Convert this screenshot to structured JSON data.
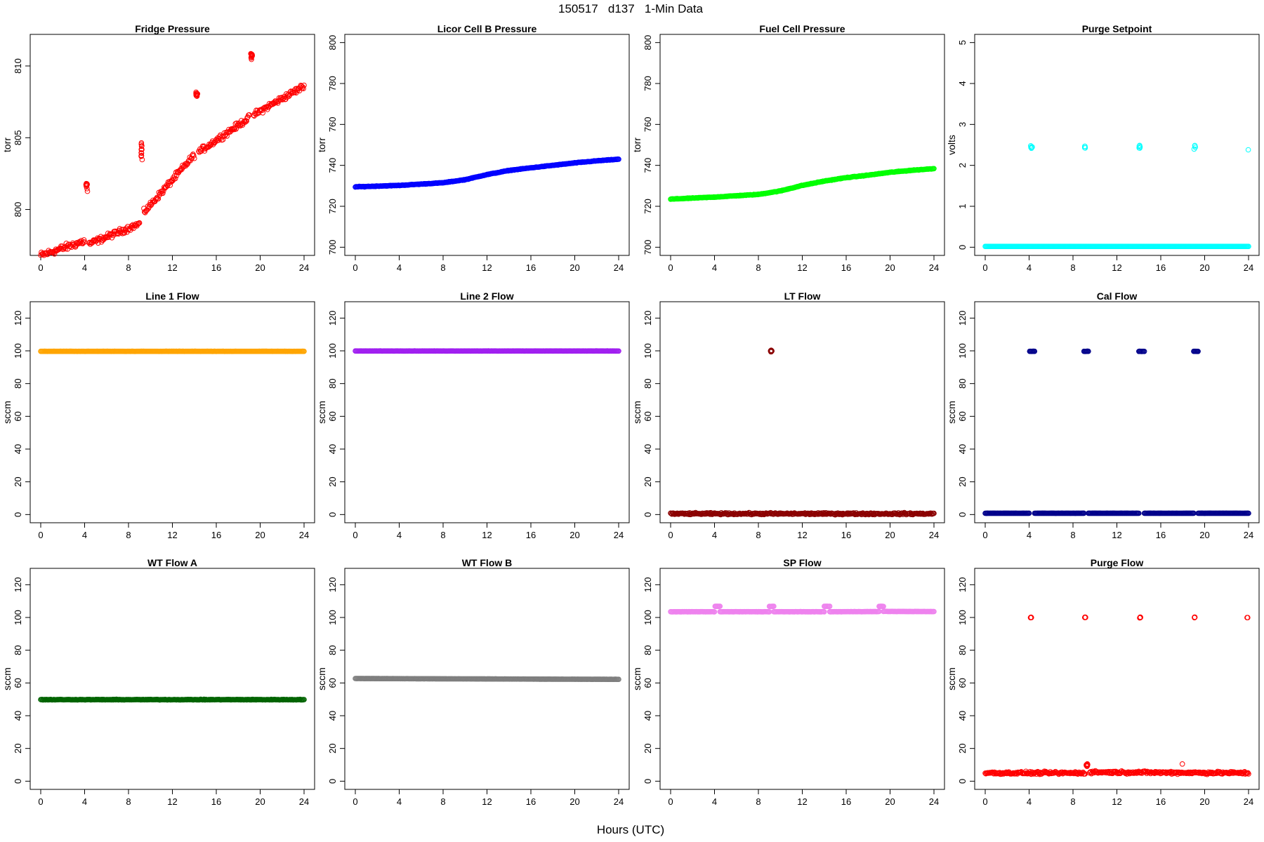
{
  "figure": {
    "title": "150517   d137   1-Min Data",
    "xlabel": "Hours (UTC)"
  },
  "chart_data": [
    {
      "type": "scatter",
      "title": "Fridge Pressure",
      "ylabel": "torr",
      "color": "#ff0000",
      "xlim": [
        -0.96,
        24.96
      ],
      "ylim": [
        796.8,
        812.2
      ],
      "xticks": [
        0,
        4,
        8,
        12,
        16,
        20,
        24
      ],
      "yticks": [
        800,
        805,
        810
      ],
      "segments": [
        {
          "x0": 0,
          "x1": 4,
          "y0": 796.8,
          "y1": 797.8,
          "noise": 0.35
        },
        {
          "x0": 4.4,
          "x1": 9.0,
          "y0": 797.6,
          "y1": 799.0,
          "noise": 0.3
        },
        {
          "x0": 9.4,
          "x1": 14.0,
          "y0": 799.8,
          "y1": 803.8,
          "noise": 0.3
        },
        {
          "x0": 14.4,
          "x1": 19.0,
          "y0": 804.0,
          "y1": 806.4,
          "noise": 0.3
        },
        {
          "x0": 19.4,
          "x1": 24.0,
          "y0": 806.6,
          "y1": 808.6,
          "noise": 0.3
        }
      ],
      "clusters": [
        {
          "x": 4.2,
          "y": 801.7,
          "n": 12,
          "spread": 0.5
        },
        {
          "x": 9.2,
          "y": 804.2,
          "n": 12,
          "spread": 0.9
        },
        {
          "x": 14.2,
          "y": 808.0,
          "n": 12,
          "spread": 0.3
        },
        {
          "x": 19.2,
          "y": 810.7,
          "n": 12,
          "spread": 0.4
        }
      ]
    },
    {
      "type": "scatter",
      "title": "Licor Cell B Pressure",
      "ylabel": "torr",
      "color": "#0000ff",
      "xlim": [
        -0.96,
        24.96
      ],
      "ylim": [
        696,
        804
      ],
      "xticks": [
        0,
        4,
        8,
        12,
        16,
        20,
        24
      ],
      "yticks": [
        700,
        720,
        740,
        760,
        780,
        800
      ],
      "series": [
        {
          "x": [
            0,
            4,
            8,
            10,
            12,
            14,
            16,
            18,
            20,
            22,
            24
          ],
          "y": [
            729.5,
            730.2,
            731.5,
            733.0,
            735.5,
            737.5,
            738.8,
            740.0,
            741.2,
            742.2,
            743.0
          ]
        }
      ],
      "noise": 0.2
    },
    {
      "type": "scatter",
      "title": "Fuel Cell Pressure",
      "ylabel": "torr",
      "color": "#00ff00",
      "xlim": [
        -0.96,
        24.96
      ],
      "ylim": [
        696,
        804
      ],
      "xticks": [
        0,
        4,
        8,
        12,
        16,
        20,
        24
      ],
      "yticks": [
        700,
        720,
        740,
        760,
        780,
        800
      ],
      "series": [
        {
          "x": [
            0,
            4,
            8,
            10,
            12,
            14,
            16,
            18,
            20,
            22,
            24
          ],
          "y": [
            723.5,
            724.5,
            725.8,
            727.5,
            730.2,
            732.3,
            734.0,
            735.2,
            736.6,
            737.6,
            738.4
          ]
        }
      ],
      "noise": 0.2
    },
    {
      "type": "scatter",
      "title": "Purge Setpoint",
      "ylabel": "volts",
      "color": "#00ffff",
      "xlim": [
        -0.96,
        24.96
      ],
      "ylim": [
        -0.2,
        5.2
      ],
      "xticks": [
        0,
        4,
        8,
        12,
        16,
        20,
        24
      ],
      "yticks": [
        0,
        1,
        2,
        3,
        4,
        5
      ],
      "segments": [
        {
          "x0": 0,
          "x1": 24,
          "y0": 0.02,
          "y1": 0.02,
          "noise": 0.0
        }
      ],
      "clusters": [
        {
          "x": 4.2,
          "y": 2.45,
          "n": 5,
          "spread": 0.07
        },
        {
          "x": 9.1,
          "y": 2.45,
          "n": 4,
          "spread": 0.06
        },
        {
          "x": 14.1,
          "y": 2.45,
          "n": 5,
          "spread": 0.07
        },
        {
          "x": 19.1,
          "y": 2.45,
          "n": 4,
          "spread": 0.06
        },
        {
          "x": 23.9,
          "y": 2.38,
          "n": 1,
          "spread": 0.0
        }
      ]
    },
    {
      "type": "scatter",
      "title": "Line 1 Flow",
      "ylabel": "sccm",
      "color": "#ffa500",
      "xlim": [
        -0.96,
        24.96
      ],
      "ylim": [
        -5,
        130
      ],
      "xticks": [
        0,
        4,
        8,
        12,
        16,
        20,
        24
      ],
      "yticks": [
        0,
        20,
        40,
        60,
        80,
        100,
        120
      ],
      "segments": [
        {
          "x0": 0,
          "x1": 24,
          "y0": 99.7,
          "y1": 99.7,
          "noise": 0.05
        }
      ]
    },
    {
      "type": "scatter",
      "title": "Line 2 Flow",
      "ylabel": "sccm",
      "color": "#a020f0",
      "xlim": [
        -0.96,
        24.96
      ],
      "ylim": [
        -5,
        130
      ],
      "xticks": [
        0,
        4,
        8,
        12,
        16,
        20,
        24
      ],
      "yticks": [
        0,
        20,
        40,
        60,
        80,
        100,
        120
      ],
      "segments": [
        {
          "x0": 0,
          "x1": 24,
          "y0": 99.9,
          "y1": 99.9,
          "noise": 0.05
        }
      ]
    },
    {
      "type": "scatter",
      "title": "LT Flow",
      "ylabel": "sccm",
      "color": "#8b0000",
      "xlim": [
        -0.96,
        24.96
      ],
      "ylim": [
        -5,
        130
      ],
      "xticks": [
        0,
        4,
        8,
        12,
        16,
        20,
        24
      ],
      "yticks": [
        0,
        20,
        40,
        60,
        80,
        100,
        120
      ],
      "segments": [
        {
          "x0": 0,
          "x1": 24,
          "y0": 0.5,
          "y1": 0.5,
          "noise": 0.8
        }
      ],
      "clusters": [
        {
          "x": 9.2,
          "y": 99.5,
          "n": 10,
          "spread": 1.5
        }
      ]
    },
    {
      "type": "scatter",
      "title": "Cal Flow",
      "ylabel": "sccm",
      "color": "#00008b",
      "xlim": [
        -0.96,
        24.96
      ],
      "ylim": [
        -5,
        130
      ],
      "xticks": [
        0,
        4,
        8,
        12,
        16,
        20,
        24
      ],
      "yticks": [
        0,
        20,
        40,
        60,
        80,
        100,
        120
      ],
      "segments": [
        {
          "x0": 0,
          "x1": 4,
          "y0": 0.8,
          "y1": 0.8,
          "noise": 0.05
        },
        {
          "x0": 4.5,
          "x1": 9.0,
          "y0": 0.8,
          "y1": 0.8,
          "noise": 0.05
        },
        {
          "x0": 9.4,
          "x1": 14.0,
          "y0": 0.8,
          "y1": 0.8,
          "noise": 0.05
        },
        {
          "x0": 14.5,
          "x1": 19.0,
          "y0": 0.8,
          "y1": 0.8,
          "noise": 0.05
        },
        {
          "x0": 19.4,
          "x1": 24.0,
          "y0": 0.8,
          "y1": 0.8,
          "noise": 0.05
        },
        {
          "x0": 4.05,
          "x1": 4.5,
          "y0": 99.7,
          "y1": 99.7,
          "noise": 0.1
        },
        {
          "x0": 9.0,
          "x1": 9.4,
          "y0": 99.7,
          "y1": 99.7,
          "noise": 0.1
        },
        {
          "x0": 14.0,
          "x1": 14.5,
          "y0": 99.7,
          "y1": 99.7,
          "noise": 0.1
        },
        {
          "x0": 19.0,
          "x1": 19.4,
          "y0": 99.7,
          "y1": 99.7,
          "noise": 0.1
        }
      ]
    },
    {
      "type": "scatter",
      "title": "WT Flow A",
      "ylabel": "sccm",
      "color": "#006400",
      "xlim": [
        -0.96,
        24.96
      ],
      "ylim": [
        -5,
        130
      ],
      "xticks": [
        0,
        4,
        8,
        12,
        16,
        20,
        24
      ],
      "yticks": [
        0,
        20,
        40,
        60,
        80,
        100,
        120
      ],
      "segments": [
        {
          "x0": 0,
          "x1": 24,
          "y0": 49.8,
          "y1": 49.8,
          "noise": 0.25
        }
      ]
    },
    {
      "type": "scatter",
      "title": "WT Flow B",
      "ylabel": "sccm",
      "color": "#7f7f7f",
      "xlim": [
        -0.96,
        24.96
      ],
      "ylim": [
        -5,
        130
      ],
      "xticks": [
        0,
        4,
        8,
        12,
        16,
        20,
        24
      ],
      "yticks": [
        0,
        20,
        40,
        60,
        80,
        100,
        120
      ],
      "segments": [
        {
          "x0": 0,
          "x1": 24,
          "y0": 62.7,
          "y1": 62.2,
          "noise": 0.05
        }
      ]
    },
    {
      "type": "scatter",
      "title": "SP Flow",
      "ylabel": "sccm",
      "color": "#ee82ee",
      "xlim": [
        -0.96,
        24.96
      ],
      "ylim": [
        -5,
        130
      ],
      "xticks": [
        0,
        4,
        8,
        12,
        16,
        20,
        24
      ],
      "yticks": [
        0,
        20,
        40,
        60,
        80,
        100,
        120
      ],
      "segments": [
        {
          "x0": 0,
          "x1": 4,
          "y0": 103.5,
          "y1": 103.5,
          "noise": 0.1
        },
        {
          "x0": 4.5,
          "x1": 9.0,
          "y0": 103.5,
          "y1": 103.5,
          "noise": 0.1
        },
        {
          "x0": 9.4,
          "x1": 14.0,
          "y0": 103.5,
          "y1": 103.5,
          "noise": 0.1
        },
        {
          "x0": 14.5,
          "x1": 19.0,
          "y0": 103.5,
          "y1": 103.6,
          "noise": 0.1
        },
        {
          "x0": 19.4,
          "x1": 24.0,
          "y0": 103.7,
          "y1": 103.6,
          "noise": 0.1
        },
        {
          "x0": 4.05,
          "x1": 4.5,
          "y0": 106.8,
          "y1": 106.8,
          "noise": 0.1
        },
        {
          "x0": 9.0,
          "x1": 9.4,
          "y0": 106.8,
          "y1": 106.8,
          "noise": 0.1
        },
        {
          "x0": 14.0,
          "x1": 14.5,
          "y0": 106.8,
          "y1": 106.8,
          "noise": 0.1
        },
        {
          "x0": 19.0,
          "x1": 19.4,
          "y0": 106.8,
          "y1": 106.8,
          "noise": 0.1
        }
      ]
    },
    {
      "type": "scatter",
      "title": "Purge Flow",
      "ylabel": "sccm",
      "color": "#ff0000",
      "xlim": [
        -0.96,
        24.96
      ],
      "ylim": [
        -5,
        130
      ],
      "xticks": [
        0,
        4,
        8,
        12,
        16,
        20,
        24
      ],
      "yticks": [
        0,
        20,
        40,
        60,
        80,
        100,
        120
      ],
      "segments": [
        {
          "x0": 0,
          "x1": 9.1,
          "y0": 5.0,
          "y1": 5.0,
          "noise": 1.2
        },
        {
          "x0": 9.5,
          "x1": 24,
          "y0": 5.5,
          "y1": 5.0,
          "noise": 1.2
        }
      ],
      "clusters": [
        {
          "x": 4.2,
          "y": 100,
          "n": 6,
          "spread": 0.4
        },
        {
          "x": 9.1,
          "y": 100,
          "n": 5,
          "spread": 0.4
        },
        {
          "x": 14.1,
          "y": 100,
          "n": 6,
          "spread": 0.4
        },
        {
          "x": 19.1,
          "y": 100,
          "n": 5,
          "spread": 0.4
        },
        {
          "x": 23.9,
          "y": 100,
          "n": 2,
          "spread": 0.3
        },
        {
          "x": 9.3,
          "y": 9.5,
          "n": 8,
          "spread": 1.6
        },
        {
          "x": 17.9,
          "y": 10.5,
          "n": 1,
          "spread": 0.0
        }
      ]
    }
  ]
}
